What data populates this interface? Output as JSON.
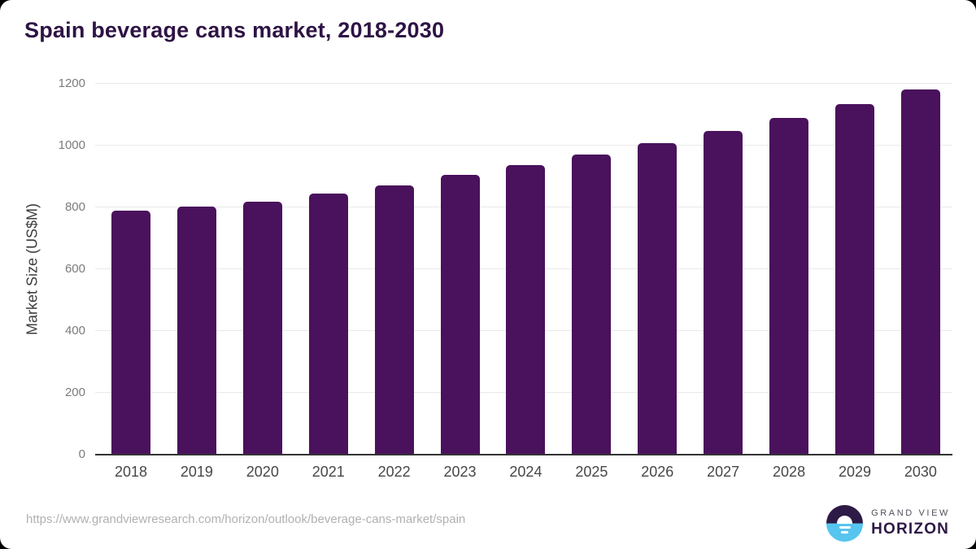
{
  "title": "Spain beverage cans market, 2018-2030",
  "chart_data": {
    "type": "bar",
    "title": "Spain beverage cans market, 2018-2030",
    "categories": [
      "2018",
      "2019",
      "2020",
      "2021",
      "2022",
      "2023",
      "2024",
      "2025",
      "2026",
      "2027",
      "2028",
      "2029",
      "2030"
    ],
    "values": [
      790,
      803,
      819,
      845,
      871,
      904,
      936,
      972,
      1009,
      1047,
      1089,
      1133,
      1182
    ],
    "xlabel": "",
    "ylabel": "Market Size (US$M)",
    "ylim": [
      0,
      1200
    ],
    "yticks": [
      0,
      200,
      400,
      600,
      800,
      1000,
      1200
    ],
    "grid": true,
    "legend": "none"
  },
  "footer": {
    "url": "https://www.grandviewresearch.com/horizon/outlook/beverage-cans-market/spain",
    "logo_top": "GRAND VIEW",
    "logo_bottom": "HORIZON"
  },
  "colors": {
    "bar-color": "#4a115c",
    "title-color": "#2e1345",
    "axis-title-color": "#3d3d3d",
    "ytick-color": "#7b7b7b",
    "xtick-color": "#474747",
    "gridline-color": "#e9e9e9",
    "axis-line-color": "#333333",
    "url-color": "#b1b1b1",
    "logo-navy": "#2e1a47",
    "logo-blue": "#56c5ef",
    "logo-gray": "#50505a"
  }
}
